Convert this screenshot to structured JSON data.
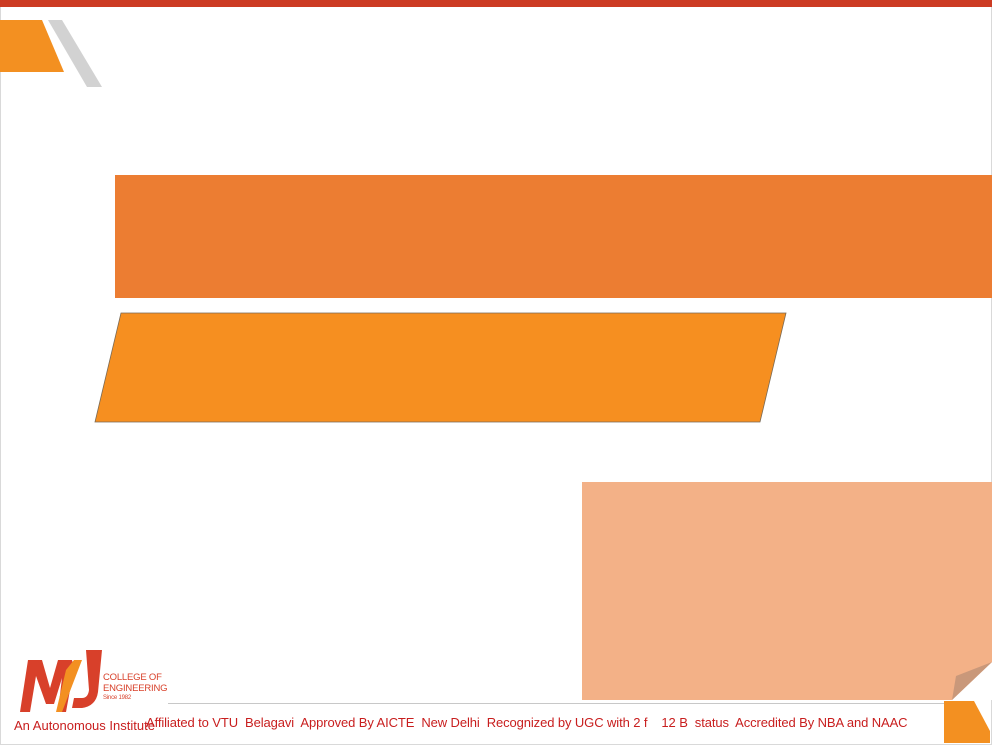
{
  "colors": {
    "top_bar": "#cc3b23",
    "title_band": "#ec7d32",
    "subtitle_band": "#f68f20",
    "note_box": "#f3b187",
    "accent_orange": "#f39021",
    "accent_gray": "#d2d2d2",
    "footer_text": "#c81e1e"
  },
  "logo": {
    "mark_icon": "mvj-logo-icon",
    "line1": "COLLEGE OF",
    "line2": "ENGINEERING",
    "since": "Since 1982"
  },
  "footer": {
    "autonomous": "An Autonomous Institute",
    "affiliation": "Affiliated to VTU  Belagavi  Approved By AICTE  New Delhi  Recognized by UGC with 2 f    12 B  status  Accredited By NBA and NAAC"
  }
}
